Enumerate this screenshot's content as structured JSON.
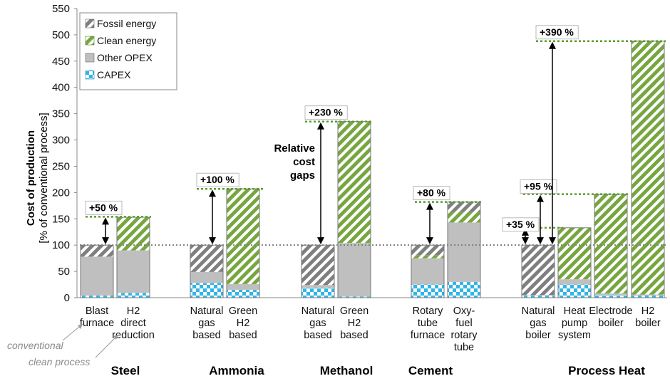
{
  "colors": {
    "fossil": "#7f7f7f",
    "clean": "#77a640",
    "opex": "#bfbfbf",
    "capex": "#31b5e8",
    "gap_line": "#5a9c2e",
    "ref_line": "#7f7f7f"
  },
  "chart_data": {
    "type": "bar",
    "stacked": true,
    "title": "",
    "ylabel": "Cost of production",
    "ylabel_sub": "[% of conventional process]",
    "ylim": [
      0,
      550
    ],
    "yticks": [
      0,
      50,
      100,
      150,
      200,
      250,
      300,
      350,
      400,
      450,
      500,
      550
    ],
    "reference_value": 100,
    "legend": {
      "position": "top-left",
      "entries": [
        {
          "key": "fossil",
          "label": "Fossil energy"
        },
        {
          "key": "clean",
          "label": "Clean energy"
        },
        {
          "key": "opex",
          "label": "Other OPEX"
        },
        {
          "key": "capex",
          "label": "CAPEX"
        }
      ]
    },
    "groups": [
      {
        "name": "Steel",
        "gap_label": "+50 %",
        "gap_from": 100,
        "gap_to": 154,
        "bars": [
          {
            "label": [
              "Blast",
              "furnace"
            ],
            "capex": 4,
            "opex": 74,
            "clean": 0,
            "fossil": 22
          },
          {
            "label": [
              "H2",
              "direct",
              "reduction"
            ],
            "capex": 9,
            "opex": 81,
            "clean": 63,
            "fossil": 0
          }
        ]
      },
      {
        "name": "Ammonia",
        "gap_label": "+100 %",
        "gap_from": 100,
        "gap_to": 207,
        "bars": [
          {
            "label": [
              "Natural",
              "gas",
              "based"
            ],
            "capex": 28,
            "opex": 21,
            "clean": 0,
            "fossil": 51
          },
          {
            "label": [
              "Green",
              "H2",
              "based"
            ],
            "capex": 15,
            "opex": 11,
            "clean": 181,
            "fossil": 0
          }
        ]
      },
      {
        "name": "Methanol",
        "gap_label": "+230 %",
        "gap_from": 100,
        "gap_to": 335,
        "bars": [
          {
            "label": [
              "Natural",
              "gas",
              "based"
            ],
            "capex": 19,
            "opex": 5,
            "clean": 0,
            "fossil": 76
          },
          {
            "label": [
              "Green",
              "H2",
              "based"
            ],
            "capex": 2,
            "opex": 102,
            "clean": 231,
            "fossil": 0
          }
        ]
      },
      {
        "name": "Cement",
        "gap_label": "+80 %",
        "gap_from": 100,
        "gap_to": 182,
        "bars": [
          {
            "label": [
              "Rotary",
              "tube",
              "furnace"
            ],
            "capex": 25,
            "opex": 50,
            "clean": 6,
            "fossil": 19
          },
          {
            "label": [
              "Oxy-",
              "fuel",
              "rotary",
              "tube"
            ],
            "capex": 30,
            "opex": 113,
            "clean": 20,
            "fossil": 19
          }
        ]
      },
      {
        "name": "Process Heat",
        "gap_labels": [
          {
            "label": "+35 %",
            "to": 133
          },
          {
            "label": "+95 %",
            "to": 197
          },
          {
            "label": "+390 %",
            "to": 488
          }
        ],
        "bars": [
          {
            "label": [
              "Natural",
              "gas",
              "boiler"
            ],
            "capex": 4,
            "opex": 1,
            "clean": 0,
            "fossil": 95
          },
          {
            "label": [
              "Heat",
              "pump",
              "system"
            ],
            "capex": 25,
            "opex": 10,
            "clean": 98,
            "fossil": 0
          },
          {
            "label": [
              "Electrode",
              "boiler"
            ],
            "capex": 5,
            "opex": 3,
            "clean": 189,
            "fossil": 0
          },
          {
            "label": [
              "H2",
              "boiler"
            ],
            "capex": 4,
            "opex": 2,
            "clean": 482,
            "fossil": 0
          }
        ]
      }
    ],
    "callout": [
      "Relative",
      "cost",
      "gaps"
    ],
    "annotations": [
      "conventional",
      "clean process"
    ]
  }
}
